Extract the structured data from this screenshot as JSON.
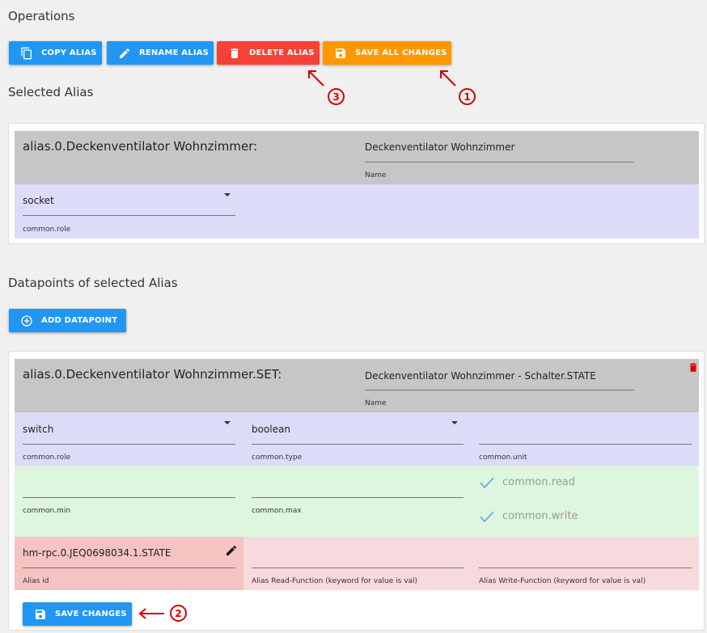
{
  "operations": {
    "title": "Operations",
    "copy_label": "COPY ALIAS",
    "rename_label": "RENAME ALIAS",
    "delete_label": "DELETE ALIAS",
    "save_all_label": "SAVE ALL CHANGES"
  },
  "annotations": {
    "one": "1",
    "two": "2",
    "three": "3"
  },
  "selected_alias": {
    "title": "Selected Alias",
    "alias_id": "alias.0.Deckenventilator Wohnzimmer:",
    "name_value": "Deckenventilator Wohnzimmer",
    "name_label": "Name",
    "role_value": "socket",
    "role_label": "common.role"
  },
  "datapoints": {
    "title": "Datapoints of selected Alias",
    "add_label": "ADD DATAPOINT",
    "items": [
      {
        "alias_id": "alias.0.Deckenventilator Wohnzimmer.SET:",
        "name_value": "Deckenventilator Wohnzimmer - Schalter.STATE",
        "name_label": "Name",
        "role_value": "switch",
        "role_label": "common.role",
        "type_value": "boolean",
        "type_label": "common.type",
        "unit_value": "",
        "unit_label": "common.unit",
        "min_value": "",
        "min_label": "common.min",
        "max_value": "",
        "max_label": "common.max",
        "read_label": "common.read",
        "write_label": "common.write",
        "id_value": "hm-rpc.0.JEQ0698034.1.STATE",
        "id_label": "Alias id",
        "read_fn_label": "Alias Read-Function (keyword for value is val)",
        "write_fn_label": "Alias Write-Function (keyword for value is val)",
        "save_label": "SAVE CHANGES"
      }
    ]
  },
  "colors": {
    "blue_button": "#2196f3",
    "red_button": "#f44336",
    "orange_button": "#ff9800",
    "annotation_red": "#d40000",
    "header_gray": "#c6c6c6",
    "lavender_row": "#dcdcf8",
    "green_row": "#ddf6dd",
    "pink_row": "#f7dadd"
  }
}
